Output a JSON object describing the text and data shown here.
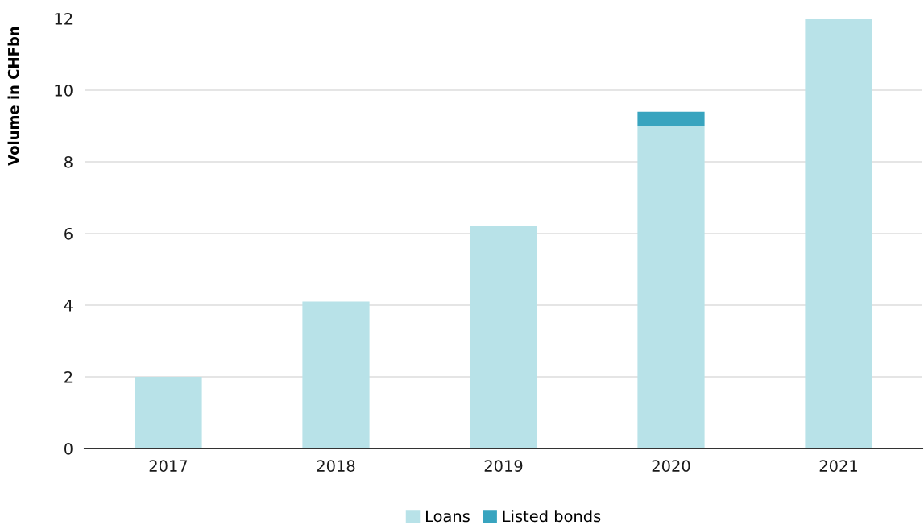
{
  "chart_data": {
    "type": "bar",
    "stacked": true,
    "ylabel": "Volume in CHFbn",
    "categories": [
      "2017",
      "2018",
      "2019",
      "2020",
      "2021"
    ],
    "series": [
      {
        "name": "Loans",
        "color": "#b8e2e8",
        "values": [
          2.0,
          4.1,
          6.2,
          9.0,
          12.0
        ]
      },
      {
        "name": "Listed bonds",
        "color": "#38a4bf",
        "values": [
          null,
          null,
          null,
          0.4,
          null
        ]
      }
    ],
    "ylim": [
      0,
      12
    ],
    "yticks": [
      0,
      2,
      4,
      6,
      8,
      10,
      12
    ],
    "grid": "y",
    "legend": "bottom"
  }
}
